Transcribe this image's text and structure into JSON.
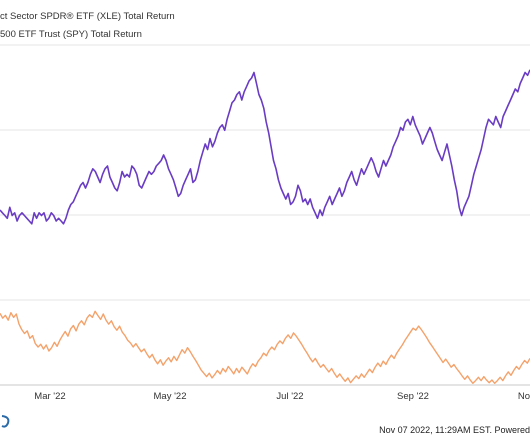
{
  "legend": {
    "items": [
      {
        "label": "ct Sector SPDR® ETF (XLE) Total Return"
      },
      {
        "label": "500 ETF Trust (SPY) Total Return"
      }
    ]
  },
  "footer": {
    "text": "Nov 07 2022, 11:29AM EST. Powered"
  },
  "chart_data": {
    "type": "line",
    "title": "",
    "xlabel": "",
    "ylabel": "",
    "x_ticks": [
      "Mar '22",
      "May '22",
      "Jul '22",
      "Sep '22",
      "No"
    ],
    "grid": true,
    "series": [
      {
        "name": "ct Sector SPDR® ETF (XLE) Total Return",
        "color": "#6a3cc4",
        "values": [
          48,
          47,
          46,
          45,
          49,
          46,
          47,
          44,
          46,
          47,
          46,
          45,
          44,
          43,
          47,
          45,
          47,
          46,
          47,
          44,
          45,
          47,
          46,
          44,
          45,
          44,
          43,
          45,
          48,
          50,
          51,
          53,
          55,
          57,
          58,
          56,
          58,
          61,
          63,
          62,
          60,
          58,
          61,
          63,
          64,
          60,
          58,
          56,
          55,
          58,
          62,
          60,
          61,
          60,
          64,
          63,
          61,
          57,
          56,
          58,
          60,
          62,
          61,
          62,
          64,
          65,
          66,
          68,
          66,
          63,
          61,
          59,
          56,
          53,
          54,
          57,
          59,
          61,
          63,
          58,
          59,
          62,
          66,
          69,
          72,
          70,
          74,
          71,
          73,
          76,
          78,
          79,
          77,
          81,
          84,
          87,
          88,
          90,
          91,
          88,
          91,
          93,
          95,
          96,
          98,
          94,
          90,
          88,
          85,
          80,
          76,
          71,
          66,
          63,
          59,
          56,
          54,
          52,
          54,
          50,
          51,
          53,
          57,
          55,
          51,
          52,
          50,
          52,
          49,
          47,
          45,
          48,
          46,
          49,
          51,
          53,
          50,
          52,
          54,
          56,
          53,
          55,
          58,
          60,
          62,
          59,
          57,
          60,
          63,
          61,
          63,
          65,
          67,
          65,
          62,
          60,
          63,
          66,
          64,
          66,
          68,
          71,
          73,
          75,
          78,
          77,
          80,
          81,
          79,
          82,
          79,
          77,
          75,
          72,
          74,
          76,
          78,
          76,
          73,
          70,
          68,
          66,
          69,
          72,
          68,
          64,
          59,
          55,
          49,
          46,
          49,
          51,
          53,
          57,
          61,
          64,
          67,
          70,
          74,
          78,
          81,
          80,
          79,
          82,
          80,
          78,
          82,
          84,
          86,
          88,
          90,
          92,
          91,
          94,
          96,
          98,
          97,
          99
        ]
      },
      {
        "name": "500 ETF Trust (SPY) Total Return",
        "color": "#f4a26b",
        "values": [
          10.5,
          9.8,
          10.2,
          9.5,
          10.6,
          9.9,
          10.4,
          8.9,
          8.1,
          7.5,
          7.9,
          6.8,
          7.2,
          6.0,
          5.5,
          5.9,
          5.2,
          5.8,
          4.9,
          5.4,
          6.2,
          5.6,
          6.5,
          7.2,
          7.8,
          7.1,
          8.2,
          8.7,
          7.9,
          8.9,
          9.4,
          8.8,
          9.8,
          10.3,
          9.9,
          10.8,
          10.2,
          9.6,
          10.4,
          9.5,
          8.9,
          9.4,
          8.5,
          8.0,
          8.6,
          7.7,
          7.2,
          6.5,
          6.1,
          5.5,
          6.0,
          5.4,
          4.8,
          5.2,
          4.5,
          3.9,
          4.4,
          3.6,
          3.0,
          3.6,
          2.8,
          3.4,
          3.9,
          3.3,
          4.1,
          3.5,
          4.3,
          5.1,
          4.6,
          5.4,
          4.8,
          4.1,
          3.5,
          2.8,
          2.1,
          1.6,
          1.1,
          1.6,
          0.9,
          1.4,
          2.0,
          1.5,
          2.3,
          1.8,
          2.6,
          2.1,
          1.5,
          2.3,
          1.7,
          2.5,
          2.0,
          1.5,
          2.4,
          3.0,
          2.6,
          3.4,
          3.9,
          4.6,
          4.2,
          5.0,
          5.5,
          5.1,
          5.9,
          6.4,
          6.0,
          6.8,
          7.3,
          6.8,
          7.6,
          7.1,
          6.5,
          5.9,
          5.2,
          4.6,
          3.9,
          3.3,
          3.8,
          3.1,
          2.5,
          2.9,
          2.3,
          1.8,
          2.3,
          1.6,
          1.0,
          1.5,
          0.9,
          0.4,
          0.9,
          0.2,
          0.7,
          1.2,
          0.8,
          1.5,
          1.0,
          1.6,
          2.2,
          1.7,
          2.5,
          3.1,
          2.6,
          3.4,
          2.9,
          3.7,
          4.3,
          3.8,
          4.6,
          5.2,
          5.8,
          6.5,
          7.1,
          7.7,
          8.3,
          8.0,
          8.6,
          8.1,
          7.5,
          6.9,
          6.2,
          5.6,
          5.0,
          4.4,
          3.8,
          3.2,
          3.7,
          3.1,
          2.5,
          2.9,
          2.3,
          1.8,
          1.2,
          0.7,
          1.2,
          0.6,
          0.1,
          0.5,
          1.0,
          0.5,
          1.1,
          0.6,
          0.2,
          0.6,
          0.1,
          0.5,
          1.0,
          0.5,
          1.2,
          1.8,
          1.3,
          2.0,
          2.6,
          2.2,
          2.9,
          3.5,
          3.1,
          3.8
        ]
      }
    ]
  }
}
